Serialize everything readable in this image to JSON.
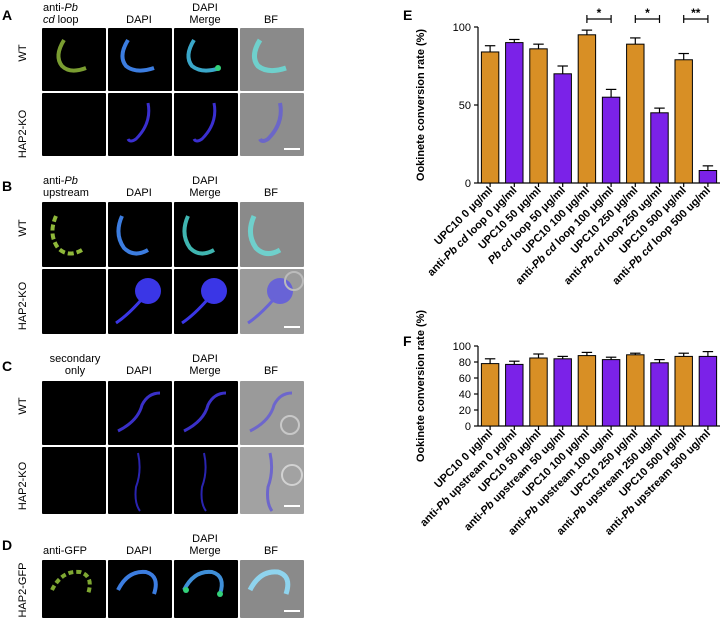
{
  "panel_labels": {
    "A": "A",
    "B": "B",
    "C": "C",
    "D": "D",
    "E": "E",
    "F": "F"
  },
  "columns": {
    "A": {
      "c1a": "anti-",
      "c1b": "Pb",
      "c1c": "cd",
      "c1d": " loop",
      "c2": "DAPI",
      "c3a": "DAPI",
      "c3b": "Merge",
      "c4": "BF"
    },
    "B": {
      "c1a": "anti-",
      "c1b": "Pb",
      "c1d": "upstream",
      "c2": "DAPI",
      "c3a": "DAPI",
      "c3b": "Merge",
      "c4": "BF"
    },
    "C": {
      "c1a": "secondary",
      "c1d": "only",
      "c2": "DAPI",
      "c3a": "DAPI",
      "c3b": "Merge",
      "c4": "BF"
    },
    "D": {
      "c1": "anti-GFP",
      "c2": "DAPI",
      "c3a": "DAPI",
      "c3b": "Merge",
      "c4": "BF"
    }
  },
  "rows": {
    "wt": "WT",
    "ko": "HAP2-KO",
    "gfp": "HAP2-GFP"
  },
  "colors": {
    "orange": "#D88F25",
    "purple": "#7B22E8"
  },
  "chart_data": [
    {
      "panel": "E",
      "type": "bar",
      "ylabel": "Ookinete conversion rate (%)",
      "ylim": [
        0,
        100
      ],
      "yticks": [
        0,
        50,
        100
      ],
      "categories": [
        "UPC10 0 μg/ml",
        "anti-Pb cd loop 0 μg/ml",
        "UPC10 50 μg/ml",
        "Pb cd loop 50 μg/ml",
        "UPC10 100 μg/ml",
        "anti-Pb cd loop 100 μg/ml",
        "UPC10 250 μg/ml",
        "anti-Pb cd loop 250 ug/ml",
        "UPC10 500 μg/ml",
        "anti-Pb cd loop 500 ug/ml"
      ],
      "category_italic": [
        [
          "",
          "",
          ""
        ],
        [
          "anti-",
          "Pb cd",
          " loop 0 μg/ml"
        ],
        [
          "",
          "",
          ""
        ],
        [
          "",
          "Pb cd",
          " loop 50 μg/ml"
        ],
        [
          "",
          "",
          ""
        ],
        [
          "anti-",
          "Pb cd",
          " loop 100 μg/ml"
        ],
        [
          "",
          "",
          ""
        ],
        [
          "anti-",
          "Pb cd",
          " loop 250 ug/ml"
        ],
        [
          "",
          "",
          ""
        ],
        [
          "anti-",
          "Pb cd",
          " loop 500 ug/ml"
        ]
      ],
      "values": [
        84,
        90,
        86,
        70,
        95,
        55,
        89,
        45,
        79,
        8
      ],
      "errors": [
        4,
        2,
        3,
        5,
        3,
        5,
        4,
        3,
        4,
        3
      ],
      "bar_colors": [
        "orange",
        "purple",
        "orange",
        "purple",
        "orange",
        "purple",
        "orange",
        "purple",
        "orange",
        "purple"
      ],
      "significance": [
        {
          "from": 4,
          "to": 5,
          "label": "*"
        },
        {
          "from": 6,
          "to": 7,
          "label": "*"
        },
        {
          "from": 8,
          "to": 9,
          "label": "**"
        }
      ]
    },
    {
      "panel": "F",
      "type": "bar",
      "ylabel": "Ookinete conversion rate (%)",
      "ylim": [
        0,
        100
      ],
      "yticks": [
        0,
        20,
        40,
        60,
        80,
        100
      ],
      "categories": [
        "UPC10 0 μg/ml",
        "anti-Pb upstream 0 μg/ml",
        "UPC10 50 μg/ml",
        "anti-Pb upstream 50 ug/ml",
        "UPC10 100 μg/ml",
        "anti-Pb upstream 100 ug/ml",
        "UPC10 250 μg/ml",
        "anti-Pb upstream 250 ug/ml",
        "UPC10 500 μg/ml",
        "anti-Pb upstream 500 ug/ml"
      ],
      "category_italic": [
        [
          "",
          "",
          ""
        ],
        [
          "anti-",
          "Pb",
          " upstream 0 μg/ml"
        ],
        [
          "",
          "",
          ""
        ],
        [
          "anti-",
          "Pb",
          " upstream 50 ug/ml"
        ],
        [
          "",
          "",
          ""
        ],
        [
          "anti-",
          "Pb",
          " upstream 100 ug/ml"
        ],
        [
          "",
          "",
          ""
        ],
        [
          "anti-",
          "Pb",
          " upstream 250 ug/ml"
        ],
        [
          "",
          "",
          ""
        ],
        [
          "anti-",
          "Pb",
          " upstream 500 ug/ml"
        ]
      ],
      "values": [
        78,
        77,
        85,
        84,
        88,
        83,
        89,
        79,
        87,
        87
      ],
      "errors": [
        6,
        4,
        5,
        3,
        4,
        3,
        2,
        4,
        4,
        6
      ],
      "bar_colors": [
        "orange",
        "purple",
        "orange",
        "purple",
        "orange",
        "purple",
        "orange",
        "purple",
        "orange",
        "purple"
      ],
      "significance": []
    }
  ]
}
